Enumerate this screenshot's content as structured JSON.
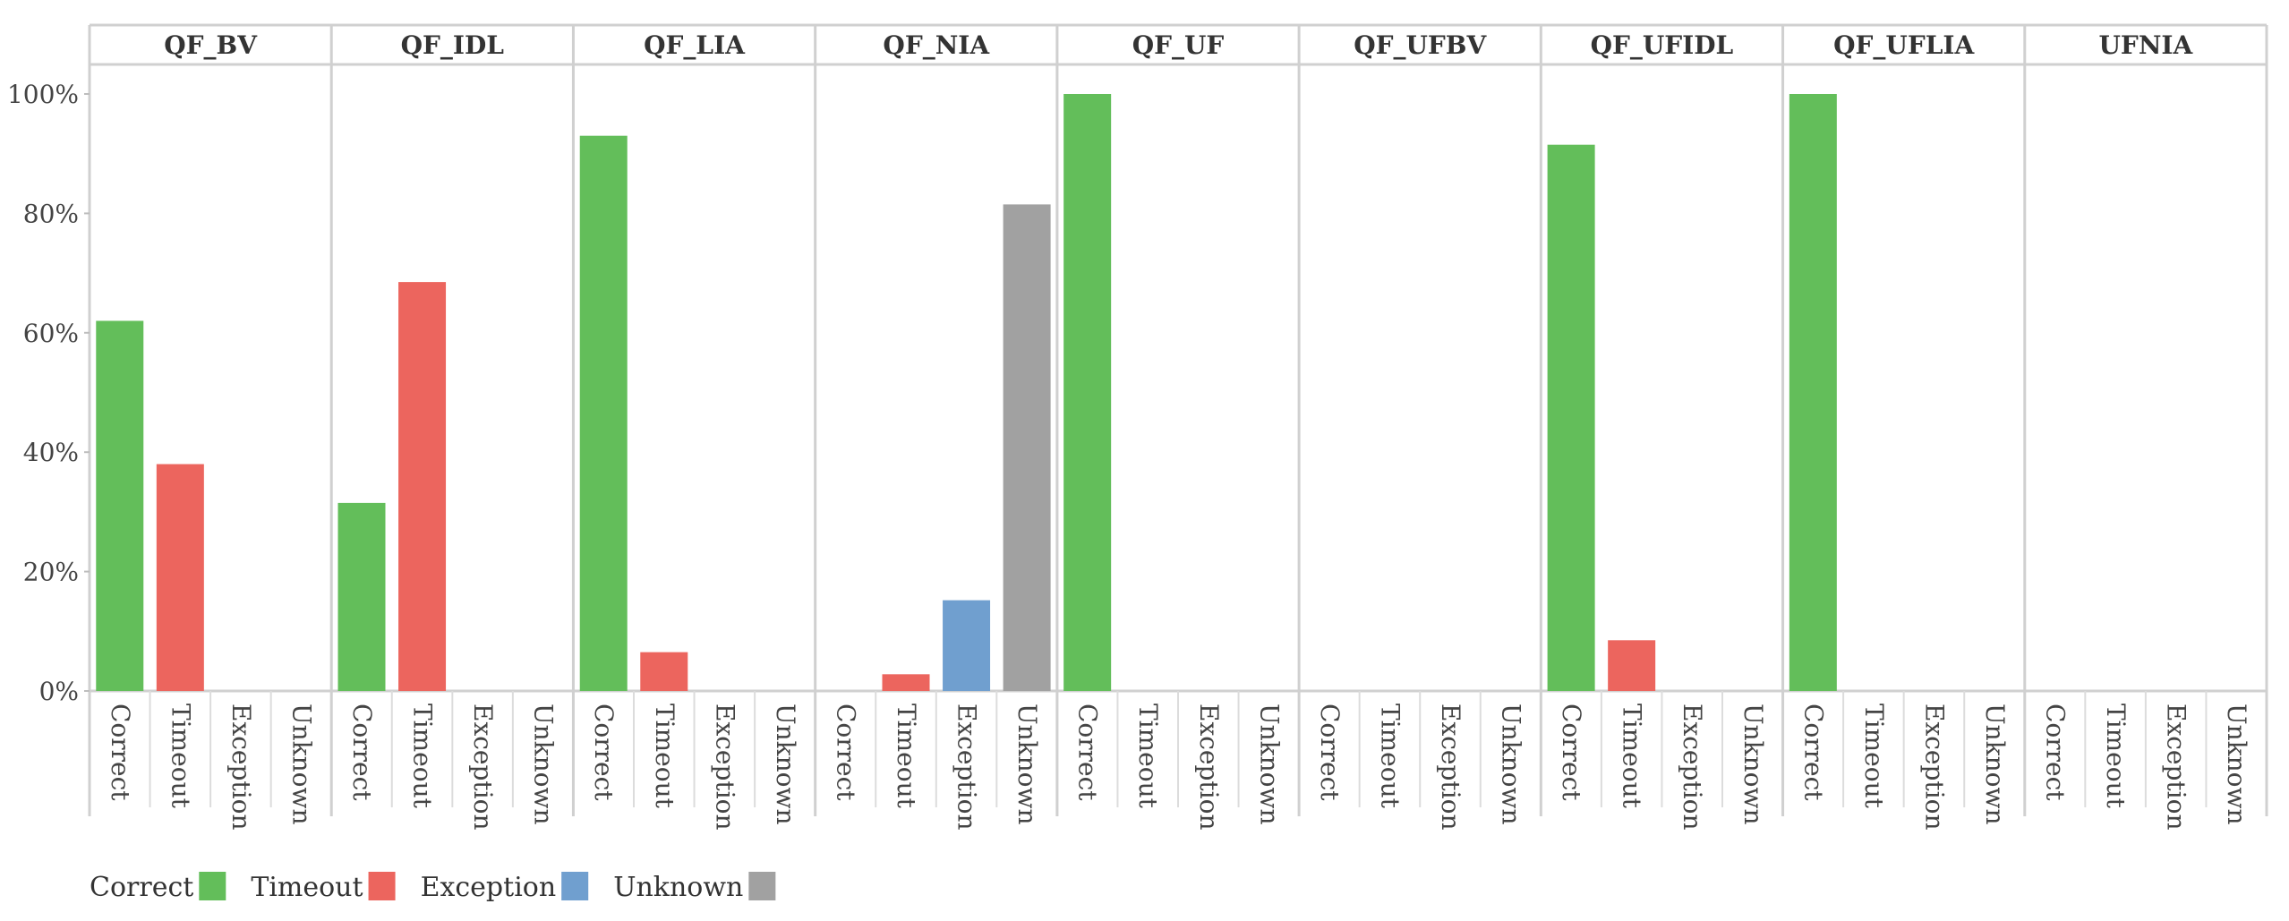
{
  "chart_data": {
    "type": "bar",
    "panels": [
      "QF_BV",
      "QF_IDL",
      "QF_LIA",
      "QF_NIA",
      "QF_UF",
      "QF_UFBV",
      "QF_UFIDL",
      "QF_UFLIA",
      "UFNIA"
    ],
    "categories": [
      "Correct",
      "Timeout",
      "Exception",
      "Unknown"
    ],
    "colors": {
      "Correct": "#63be5a",
      "Timeout": "#ec655e",
      "Exception": "#709fcf",
      "Unknown": "#a1a1a1"
    },
    "values": {
      "QF_BV": [
        62,
        38,
        0,
        0
      ],
      "QF_IDL": [
        31.5,
        68.5,
        0,
        0
      ],
      "QF_LIA": [
        93,
        6.5,
        0,
        0
      ],
      "QF_NIA": [
        0,
        2.8,
        15.2,
        81.5
      ],
      "QF_UF": [
        100,
        0,
        0,
        0
      ],
      "QF_UFBV": [
        0,
        0,
        0,
        0
      ],
      "QF_UFIDL": [
        91.5,
        8.5,
        0,
        0
      ],
      "QF_UFLIA": [
        100,
        0,
        0,
        0
      ],
      "UFNIA": [
        0,
        0,
        0,
        0
      ]
    },
    "y_ticks": [
      "0%",
      "20%",
      "40%",
      "60%",
      "80%",
      "100%"
    ],
    "ylim": [
      0,
      100
    ],
    "legend": {
      "placement": "bottom-left",
      "entries": [
        "Correct",
        "Timeout",
        "Exception",
        "Unknown"
      ]
    },
    "grid": false
  }
}
